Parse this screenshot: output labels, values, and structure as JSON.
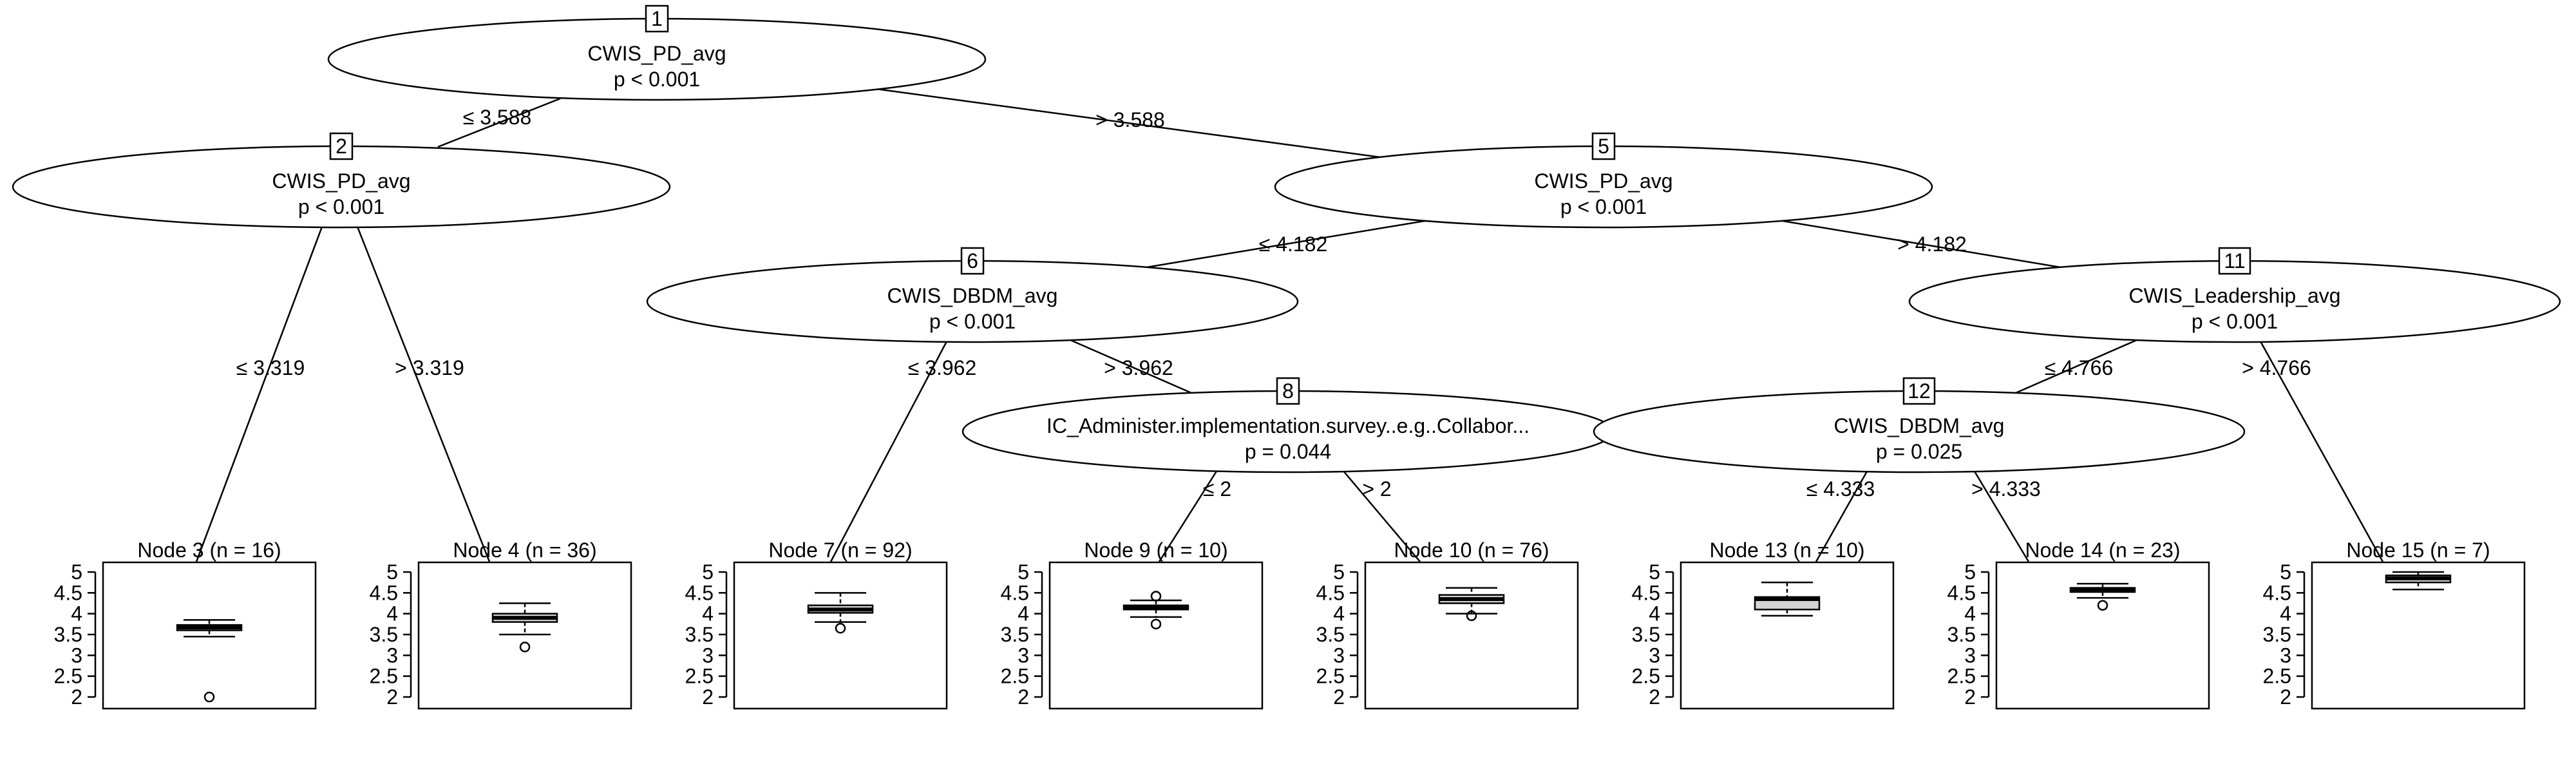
{
  "inner_nodes": [
    {
      "id": "1",
      "variable": "CWIS_PD_avg",
      "pvalue": "p < 0.001"
    },
    {
      "id": "2",
      "variable": "CWIS_PD_avg",
      "pvalue": "p < 0.001"
    },
    {
      "id": "5",
      "variable": "CWIS_PD_avg",
      "pvalue": "p < 0.001"
    },
    {
      "id": "6",
      "variable": "CWIS_DBDM_avg",
      "pvalue": "p < 0.001"
    },
    {
      "id": "11",
      "variable": "CWIS_Leadership_avg",
      "pvalue": "p < 0.001"
    },
    {
      "id": "8",
      "variable": "IC_Administer.implementation.survey..e.g..Collabor...",
      "pvalue": "p = 0.044"
    },
    {
      "id": "12",
      "variable": "CWIS_DBDM_avg",
      "pvalue": "p = 0.025"
    }
  ],
  "edges": [
    {
      "from": "1",
      "to": "2",
      "label": "≤ 3.588"
    },
    {
      "from": "1",
      "to": "5",
      "label": "> 3.588"
    },
    {
      "from": "2",
      "to": "3",
      "label": "≤ 3.319"
    },
    {
      "from": "2",
      "to": "4",
      "label": "> 3.319"
    },
    {
      "from": "5",
      "to": "6",
      "label": "≤ 4.182"
    },
    {
      "from": "5",
      "to": "11",
      "label": "> 4.182"
    },
    {
      "from": "6",
      "to": "7",
      "label": "≤ 3.962"
    },
    {
      "from": "6",
      "to": "8",
      "label": "> 3.962"
    },
    {
      "from": "8",
      "to": "9",
      "label": "≤ 2"
    },
    {
      "from": "8",
      "to": "10",
      "label": "> 2"
    },
    {
      "from": "11",
      "to": "12",
      "label": "≤ 4.766"
    },
    {
      "from": "11",
      "to": "15",
      "label": "> 4.766"
    },
    {
      "from": "12",
      "to": "13",
      "label": "≤ 4.333"
    },
    {
      "from": "12",
      "to": "14",
      "label": "> 4.333"
    }
  ],
  "terminal_nodes": [
    {
      "id": "3",
      "title": "Node 3 (n = 16)",
      "q1": 3.6,
      "median": 3.67,
      "q3": 3.73,
      "whisker_low": 3.45,
      "whisker_high": 3.85,
      "outliers": [
        2.0
      ]
    },
    {
      "id": "4",
      "title": "Node 4 (n = 36)",
      "q1": 3.8,
      "median": 3.9,
      "q3": 4.0,
      "whisker_low": 3.5,
      "whisker_high": 4.25,
      "outliers": [
        3.2
      ]
    },
    {
      "id": "7",
      "title": "Node 7 (n = 92)",
      "q1": 4.02,
      "median": 4.1,
      "q3": 4.2,
      "whisker_low": 3.8,
      "whisker_high": 4.5,
      "outliers": [
        3.65
      ]
    },
    {
      "id": "9",
      "title": "Node 9 (n = 10)",
      "q1": 4.1,
      "median": 4.15,
      "q3": 4.2,
      "whisker_low": 3.92,
      "whisker_high": 4.32,
      "outliers": [
        3.75,
        4.42
      ]
    },
    {
      "id": "10",
      "title": "Node 10 (n = 76)",
      "q1": 4.25,
      "median": 4.35,
      "q3": 4.45,
      "whisker_low": 4.0,
      "whisker_high": 4.62,
      "outliers": [
        3.95
      ]
    },
    {
      "id": "13",
      "title": "Node 13 (n = 10)",
      "q1": 4.1,
      "median": 4.35,
      "q3": 4.4,
      "whisker_low": 3.95,
      "whisker_high": 4.75,
      "outliers": []
    },
    {
      "id": "14",
      "title": "Node 14 (n = 23)",
      "q1": 4.52,
      "median": 4.58,
      "q3": 4.62,
      "whisker_low": 4.38,
      "whisker_high": 4.72,
      "outliers": [
        4.2
      ]
    },
    {
      "id": "15",
      "title": "Node 15 (n = 7)",
      "q1": 4.75,
      "median": 4.85,
      "q3": 4.92,
      "whisker_low": 4.58,
      "whisker_high": 5.0,
      "outliers": []
    }
  ],
  "y_axis": {
    "ticks": [
      "2",
      "2.5",
      "3",
      "3.5",
      "4",
      "4.5",
      "5"
    ],
    "min": 2,
    "max": 5
  }
}
